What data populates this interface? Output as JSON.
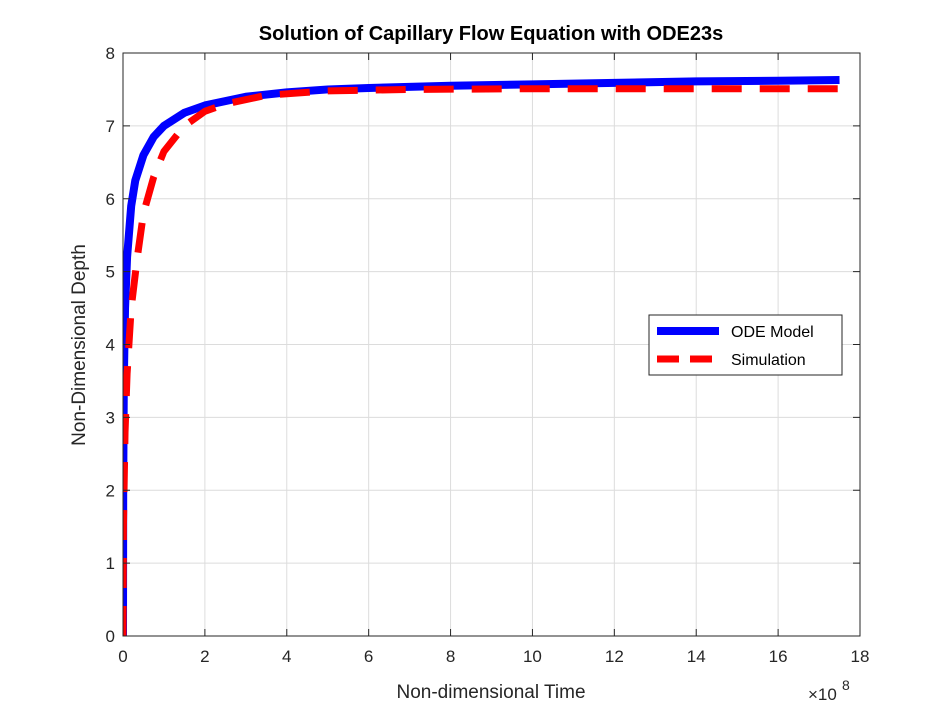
{
  "chart_data": {
    "type": "line",
    "title": "Solution of Capillary Flow Equation with ODE23s",
    "xlabel": "Non-dimensional Time",
    "ylabel": "Non-Dimensional Depth",
    "x_multiplier_label": "×10",
    "x_multiplier_exp": "8",
    "xlim": [
      0,
      18
    ],
    "ylim": [
      0,
      8
    ],
    "x_data_max": 17.5,
    "x_ticks": [
      "0",
      "2",
      "4",
      "6",
      "8",
      "10",
      "12",
      "14",
      "16",
      "18"
    ],
    "y_ticks": [
      "0",
      "1",
      "2",
      "3",
      "4",
      "5",
      "6",
      "7",
      "8"
    ],
    "grid": true,
    "legend_position": "right-middle",
    "series": [
      {
        "name": "ODE Model",
        "color": "#0000ff",
        "style": "solid",
        "x": [
          0,
          0.005,
          0.02,
          0.05,
          0.1,
          0.2,
          0.3,
          0.5,
          0.75,
          1.0,
          1.5,
          2.0,
          3.0,
          4.0,
          5.0,
          6.0,
          8.0,
          10.0,
          12.0,
          14.0,
          16.0,
          17.5
        ],
        "y": [
          0,
          2.0,
          3.5,
          4.5,
          5.2,
          5.9,
          6.25,
          6.6,
          6.85,
          7.0,
          7.18,
          7.28,
          7.4,
          7.46,
          7.5,
          7.52,
          7.55,
          7.57,
          7.59,
          7.61,
          7.62,
          7.63
        ]
      },
      {
        "name": "Simulation",
        "color": "#ff0000",
        "style": "dashed",
        "x": [
          0,
          0.01,
          0.05,
          0.1,
          0.2,
          0.35,
          0.5,
          0.75,
          1.0,
          1.5,
          2.0,
          2.5,
          3.5,
          5.0,
          7.0,
          10.0,
          13.0,
          17.5
        ],
        "y": [
          0,
          1.5,
          2.8,
          3.6,
          4.5,
          5.2,
          5.8,
          6.3,
          6.65,
          7.0,
          7.2,
          7.3,
          7.42,
          7.48,
          7.5,
          7.51,
          7.51,
          7.51
        ]
      }
    ]
  }
}
